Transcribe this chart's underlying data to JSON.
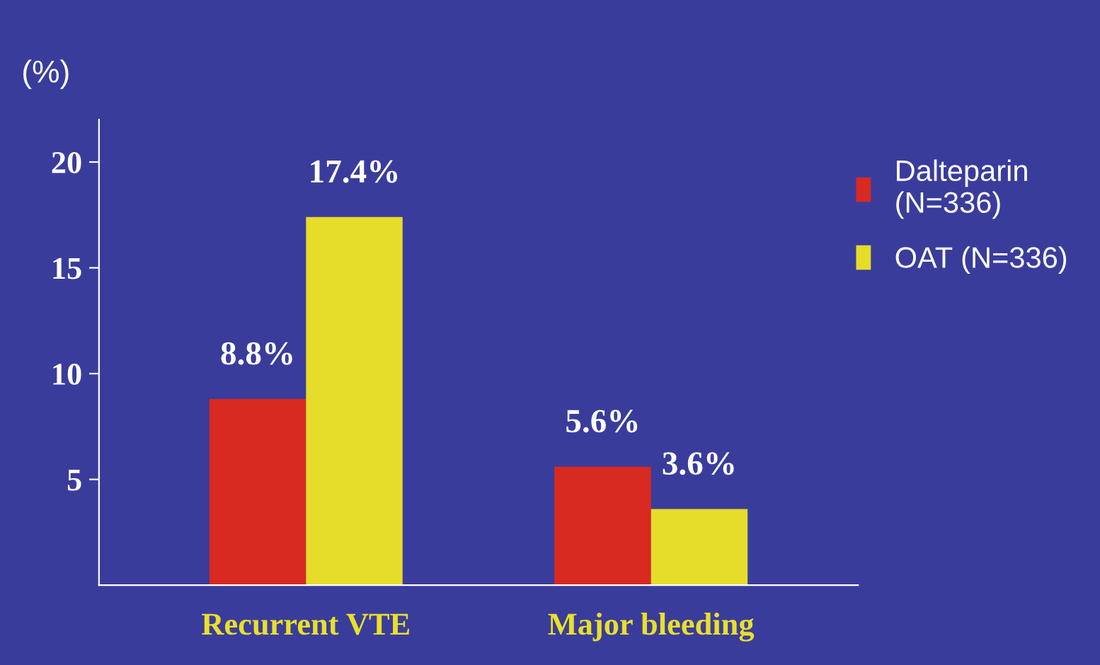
{
  "chart_data": {
    "type": "bar",
    "ylabel": "(%)",
    "categories": [
      "Recurrent VTE",
      "Major bleeding"
    ],
    "series": [
      {
        "name": "Dalteparin\n(N=336)",
        "color": "#d82a20",
        "values": [
          8.8,
          5.6
        ],
        "value_labels": [
          "8.8%",
          "5.6%"
        ]
      },
      {
        "name": "OAT (N=336)",
        "color": "#e6dc2a",
        "values": [
          17.4,
          3.6
        ],
        "value_labels": [
          "17.4%",
          "3.6%"
        ]
      }
    ],
    "ylim": [
      0,
      22
    ],
    "yticks": [
      5,
      10,
      15,
      20
    ],
    "grid": false,
    "legend": "top right"
  }
}
